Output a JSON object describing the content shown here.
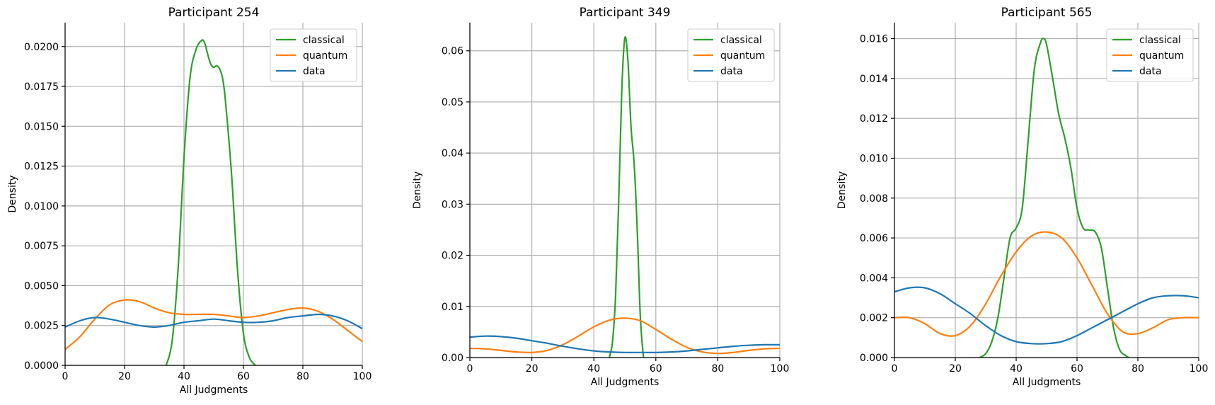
{
  "colors": {
    "classical": "#2ca02c",
    "quantum": "#ff7f0e",
    "data": "#1f77b4",
    "grid": "#b0b0b0"
  },
  "chart_data": [
    {
      "type": "line",
      "title": "Participant 254",
      "xlabel": "All Judgments",
      "ylabel": "Density",
      "xlim": [
        0,
        100
      ],
      "ylim": [
        0,
        0.0215
      ],
      "xticks": [
        0,
        20,
        40,
        60,
        80,
        100
      ],
      "yticks": [
        0,
        0.0025,
        0.005,
        0.0075,
        0.01,
        0.0125,
        0.015,
        0.0175,
        0.02
      ],
      "ytick_labels": [
        "0.0000",
        "0.0025",
        "0.0050",
        "0.0075",
        "0.0100",
        "0.0125",
        "0.0150",
        "0.0175",
        "0.0200"
      ],
      "grid": true,
      "legend": "top-right",
      "series": [
        {
          "name": "classical",
          "color": "#2ca02c",
          "x": [
            34,
            36,
            38,
            40,
            42,
            44,
            46,
            47,
            48,
            49,
            50,
            51,
            52,
            53,
            54,
            56,
            58,
            60,
            62,
            64
          ],
          "y": [
            0,
            0.0015,
            0.006,
            0.013,
            0.018,
            0.0198,
            0.0204,
            0.0202,
            0.0195,
            0.0189,
            0.0187,
            0.0188,
            0.0186,
            0.018,
            0.0165,
            0.012,
            0.006,
            0.002,
            0.0005,
            0
          ]
        },
        {
          "name": "quantum",
          "color": "#ff7f0e",
          "x": [
            0,
            5,
            10,
            15,
            20,
            25,
            30,
            35,
            40,
            45,
            50,
            55,
            60,
            65,
            70,
            75,
            80,
            85,
            90,
            95,
            100
          ],
          "y": [
            0.001,
            0.0018,
            0.0029,
            0.0038,
            0.0041,
            0.004,
            0.0036,
            0.0033,
            0.0032,
            0.0032,
            0.0032,
            0.0031,
            0.003,
            0.0031,
            0.0033,
            0.0035,
            0.0036,
            0.0034,
            0.0029,
            0.0022,
            0.0015
          ]
        },
        {
          "name": "data",
          "color": "#1f77b4",
          "x": [
            0,
            5,
            10,
            15,
            20,
            25,
            30,
            35,
            40,
            45,
            50,
            55,
            60,
            65,
            70,
            75,
            80,
            85,
            90,
            95,
            100
          ],
          "y": [
            0.0024,
            0.0028,
            0.003,
            0.0029,
            0.0027,
            0.0025,
            0.0024,
            0.0025,
            0.0027,
            0.0028,
            0.0029,
            0.0028,
            0.0027,
            0.0027,
            0.0028,
            0.003,
            0.0031,
            0.0032,
            0.0031,
            0.0028,
            0.0023
          ]
        }
      ]
    },
    {
      "type": "line",
      "title": "Participant 349",
      "xlabel": "All Judgments",
      "ylabel": "Density",
      "xlim": [
        0,
        100
      ],
      "ylim": [
        0,
        0.0655
      ],
      "xticks": [
        0,
        20,
        40,
        60,
        80,
        100
      ],
      "yticks": [
        0,
        0.01,
        0.02,
        0.03,
        0.04,
        0.05,
        0.06
      ],
      "ytick_labels": [
        "0.00",
        "0.01",
        "0.02",
        "0.03",
        "0.04",
        "0.05",
        "0.06"
      ],
      "grid": true,
      "legend": "top-right",
      "series": [
        {
          "name": "classical",
          "color": "#2ca02c",
          "x": [
            45,
            46,
            47,
            48,
            49,
            50,
            51,
            52,
            53,
            54,
            55,
            56
          ],
          "y": [
            0,
            0.003,
            0.012,
            0.03,
            0.052,
            0.0625,
            0.058,
            0.045,
            0.038,
            0.025,
            0.008,
            0
          ]
        },
        {
          "name": "quantum",
          "color": "#ff7f0e",
          "x": [
            0,
            5,
            10,
            15,
            20,
            25,
            30,
            35,
            40,
            45,
            50,
            55,
            60,
            65,
            70,
            75,
            80,
            85,
            90,
            95,
            100
          ],
          "y": [
            0.0018,
            0.0017,
            0.0014,
            0.0011,
            0.001,
            0.0014,
            0.0025,
            0.0042,
            0.006,
            0.0073,
            0.0077,
            0.0072,
            0.0055,
            0.0036,
            0.002,
            0.0011,
            0.0008,
            0.001,
            0.0014,
            0.0017,
            0.0018
          ]
        },
        {
          "name": "data",
          "color": "#1f77b4",
          "x": [
            0,
            5,
            10,
            15,
            20,
            25,
            30,
            35,
            40,
            45,
            50,
            55,
            60,
            65,
            70,
            75,
            80,
            85,
            90,
            95,
            100
          ],
          "y": [
            0.004,
            0.0042,
            0.0041,
            0.0038,
            0.0033,
            0.0028,
            0.0022,
            0.0017,
            0.0013,
            0.0011,
            0.001,
            0.001,
            0.001,
            0.0011,
            0.0013,
            0.0016,
            0.0019,
            0.0022,
            0.0024,
            0.0025,
            0.0025
          ]
        }
      ]
    },
    {
      "type": "line",
      "title": "Participant 565",
      "xlabel": "All Judgments",
      "ylabel": "Density",
      "xlim": [
        0,
        100
      ],
      "ylim": [
        0,
        0.0168
      ],
      "xticks": [
        0,
        20,
        40,
        60,
        80,
        100
      ],
      "yticks": [
        0,
        0.002,
        0.004,
        0.006,
        0.008,
        0.01,
        0.012,
        0.014,
        0.016
      ],
      "ytick_labels": [
        "0.000",
        "0.002",
        "0.004",
        "0.006",
        "0.008",
        "0.010",
        "0.012",
        "0.014",
        "0.016"
      ],
      "grid": true,
      "legend": "top-right",
      "series": [
        {
          "name": "classical",
          "color": "#2ca02c",
          "x": [
            28,
            30,
            32,
            34,
            36,
            38,
            40,
            42,
            44,
            46,
            48,
            49,
            50,
            52,
            54,
            56,
            58,
            60,
            62,
            64,
            66,
            68,
            70,
            72,
            74,
            76,
            77
          ],
          "y": [
            0,
            0.0002,
            0.0008,
            0.002,
            0.004,
            0.006,
            0.0065,
            0.0075,
            0.011,
            0.0145,
            0.0158,
            0.016,
            0.0157,
            0.014,
            0.0122,
            0.011,
            0.0095,
            0.0075,
            0.0065,
            0.0064,
            0.0063,
            0.0055,
            0.0035,
            0.0015,
            0.0004,
            0.0001,
            0
          ]
        },
        {
          "name": "quantum",
          "color": "#ff7f0e",
          "x": [
            0,
            5,
            10,
            15,
            20,
            25,
            30,
            35,
            40,
            45,
            50,
            55,
            60,
            65,
            70,
            75,
            80,
            85,
            90,
            95,
            100
          ],
          "y": [
            0.002,
            0.002,
            0.0017,
            0.0012,
            0.0011,
            0.0016,
            0.0027,
            0.0041,
            0.0053,
            0.0061,
            0.0063,
            0.006,
            0.005,
            0.0036,
            0.0022,
            0.0013,
            0.0012,
            0.0015,
            0.0019,
            0.002,
            0.002
          ]
        },
        {
          "name": "data",
          "color": "#1f77b4",
          "x": [
            0,
            5,
            10,
            15,
            20,
            25,
            30,
            35,
            40,
            45,
            50,
            55,
            60,
            65,
            70,
            75,
            80,
            85,
            90,
            95,
            100
          ],
          "y": [
            0.0033,
            0.0035,
            0.0035,
            0.0032,
            0.0027,
            0.0022,
            0.0016,
            0.0011,
            0.0008,
            0.0007,
            0.0007,
            0.0008,
            0.0011,
            0.0015,
            0.0019,
            0.0023,
            0.0027,
            0.003,
            0.0031,
            0.0031,
            0.003
          ]
        }
      ]
    }
  ]
}
